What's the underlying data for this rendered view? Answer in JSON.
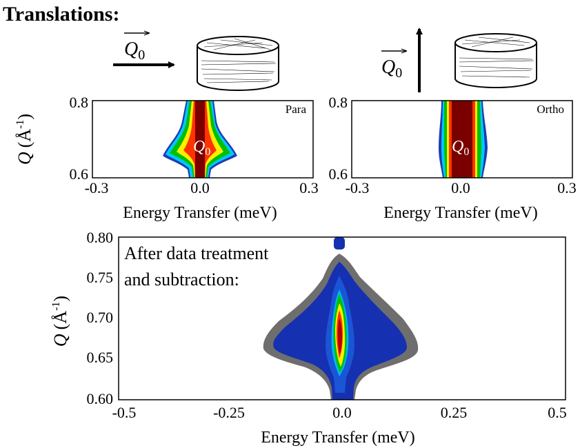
{
  "header": {
    "title": "Translations:",
    "q0_vector_left": "Q",
    "q0_vector_left_sub": "0",
    "q0_vector_right": "Q",
    "q0_vector_right_sub": "0"
  },
  "chart_data": [
    {
      "type": "heatmap",
      "panel": "top-left",
      "corner_label": "Para",
      "peak_label": "Q",
      "peak_label_sub": "0",
      "xlabel": "Energy Transfer (meV)",
      "ylabel": "Q (Å-1)",
      "ylabel_main": "Q",
      "ylabel_units": "(Å",
      "ylabel_exp": "-1",
      "ylabel_close": ")",
      "xlim": [
        -0.3,
        0.3
      ],
      "ylim": [
        0.6,
        0.8
      ],
      "xticks": [
        "-0.3",
        "0.0",
        "0.3"
      ],
      "yticks": [
        "0.6",
        "0.8"
      ],
      "grid": false,
      "colormap": [
        "#1f3bb0",
        "#00c8ff",
        "#00c000",
        "#ffee00",
        "#ff3300",
        "#7a0000"
      ]
    },
    {
      "type": "heatmap",
      "panel": "top-right",
      "corner_label": "Ortho",
      "peak_label": "Q",
      "peak_label_sub": "0",
      "xlabel": "Energy Transfer (meV)",
      "xlim": [
        -0.3,
        0.3
      ],
      "ylim": [
        0.6,
        0.8
      ],
      "xticks": [
        "-0.3",
        "0.0",
        "0.3"
      ],
      "yticks": [
        "0.8",
        "0.6"
      ],
      "grid": false
    },
    {
      "type": "heatmap",
      "panel": "bottom",
      "annotation_line1": "After data treatment",
      "annotation_line2": "and subtraction:",
      "xlabel": "Energy Transfer (meV)",
      "ylabel_main": "Q",
      "ylabel_units": "(Å",
      "ylabel_exp": "-1",
      "ylabel_close": ")",
      "xlim": [
        -0.5,
        0.5
      ],
      "ylim": [
        0.6,
        0.8
      ],
      "xticks": [
        "-0.5",
        "-0.25",
        "0.0",
        "0.25",
        "0.5"
      ],
      "yticks": [
        "0.60",
        "0.65",
        "0.70",
        "0.75",
        "0.80"
      ],
      "grid": false,
      "colors": {
        "background_shell": "#6e6e6e",
        "base": "#1530b0",
        "core": "#b00000"
      }
    }
  ]
}
